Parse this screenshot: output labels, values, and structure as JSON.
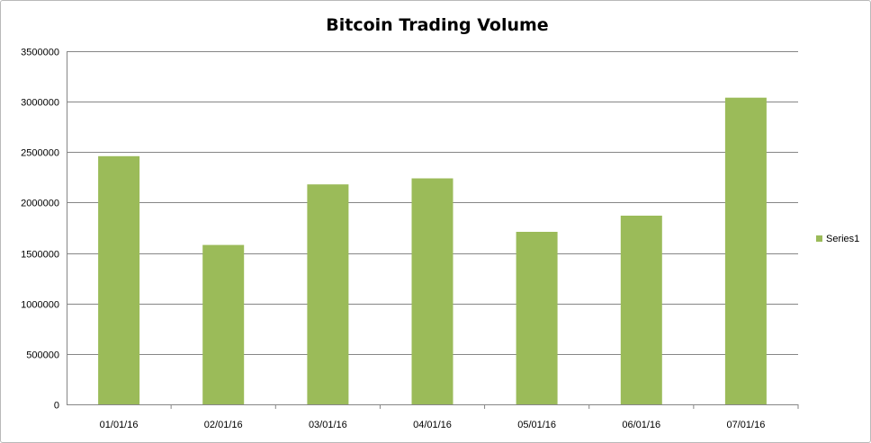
{
  "chart_data": {
    "type": "bar",
    "title": "Bitcoin Trading Volume",
    "xlabel": "",
    "ylabel": "",
    "categories": [
      "01/01/16",
      "02/01/16",
      "03/01/16",
      "04/01/16",
      "05/01/16",
      "06/01/16",
      "07/01/16"
    ],
    "series": [
      {
        "name": "Series1",
        "color": "#9bbb59",
        "values": [
          2460000,
          1580000,
          2180000,
          2240000,
          1710000,
          1870000,
          3040000
        ]
      }
    ],
    "ylim": [
      0,
      3500000
    ],
    "yticks": [
      "0",
      "500000",
      "1000000",
      "1500000",
      "2000000",
      "2500000",
      "3000000",
      "3500000"
    ],
    "grid": true,
    "legend_position": "right"
  }
}
